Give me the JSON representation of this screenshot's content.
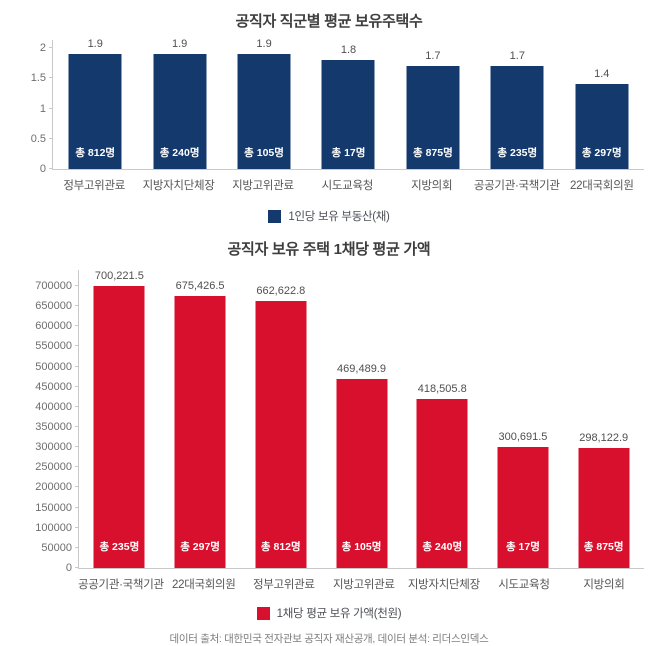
{
  "page": {
    "source_note": "데이터 출처: 대한민국 전자관보 공직자 재산공개, 데이터 분석: 리더스인덱스"
  },
  "chart_data": [
    {
      "type": "bar",
      "title": "공직자 직군별 평균 보유주택수",
      "categories": [
        "정부고위관료",
        "지방자치단체장",
        "지방고위관료",
        "시도교육청",
        "지방의회",
        "공공기관·국책기관",
        "22대국회의원"
      ],
      "values": [
        1.9,
        1.9,
        1.9,
        1.8,
        1.7,
        1.7,
        1.4
      ],
      "value_labels": [
        "1.9",
        "1.9",
        "1.9",
        "1.8",
        "1.7",
        "1.7",
        "1.4"
      ],
      "bar_inner_labels": [
        "총 812명",
        "총 240명",
        "총 105명",
        "총 17명",
        "총 875명",
        "총 235명",
        "총 297명"
      ],
      "legend": "1인당 보유 부동산(채)",
      "bar_color": "#14396d",
      "xlabel": "",
      "ylabel": "",
      "ylim": [
        0,
        2
      ],
      "yticks": [
        0,
        0.5,
        1,
        1.5,
        2
      ],
      "ytick_labels": [
        "0",
        "0.5",
        "1",
        "1.5",
        "2"
      ],
      "grid": false,
      "legend_position": "bottom"
    },
    {
      "type": "bar",
      "title": "공직자 보유 주택 1채당 평균 가액",
      "categories": [
        "공공기관·국책기관",
        "22대국회의원",
        "정부고위관료",
        "지방고위관료",
        "지방자치단체장",
        "시도교육청",
        "지방의회"
      ],
      "values": [
        700221.5,
        675426.5,
        662622.8,
        469489.9,
        418505.8,
        300691.5,
        298122.9
      ],
      "value_labels": [
        "700,221.5",
        "675,426.5",
        "662,622.8",
        "469,489.9",
        "418,505.8",
        "300,691.5",
        "298,122.9"
      ],
      "bar_inner_labels": [
        "총 235명",
        "총 297명",
        "총 812명",
        "총 105명",
        "총 240명",
        "총 17명",
        "총 875명"
      ],
      "legend": "1채당 평균 보유 가액(천원)",
      "bar_color": "#d8102e",
      "xlabel": "",
      "ylabel": "",
      "ylim": [
        0,
        700000
      ],
      "yticks": [
        0,
        50000,
        100000,
        150000,
        200000,
        250000,
        300000,
        350000,
        400000,
        450000,
        500000,
        550000,
        600000,
        650000,
        700000
      ],
      "ytick_labels": [
        "0",
        "50000",
        "100000",
        "150000",
        "200000",
        "250000",
        "300000",
        "350000",
        "400000",
        "450000",
        "500000",
        "550000",
        "600000",
        "650000",
        "700000"
      ],
      "grid": false,
      "legend_position": "bottom"
    }
  ]
}
